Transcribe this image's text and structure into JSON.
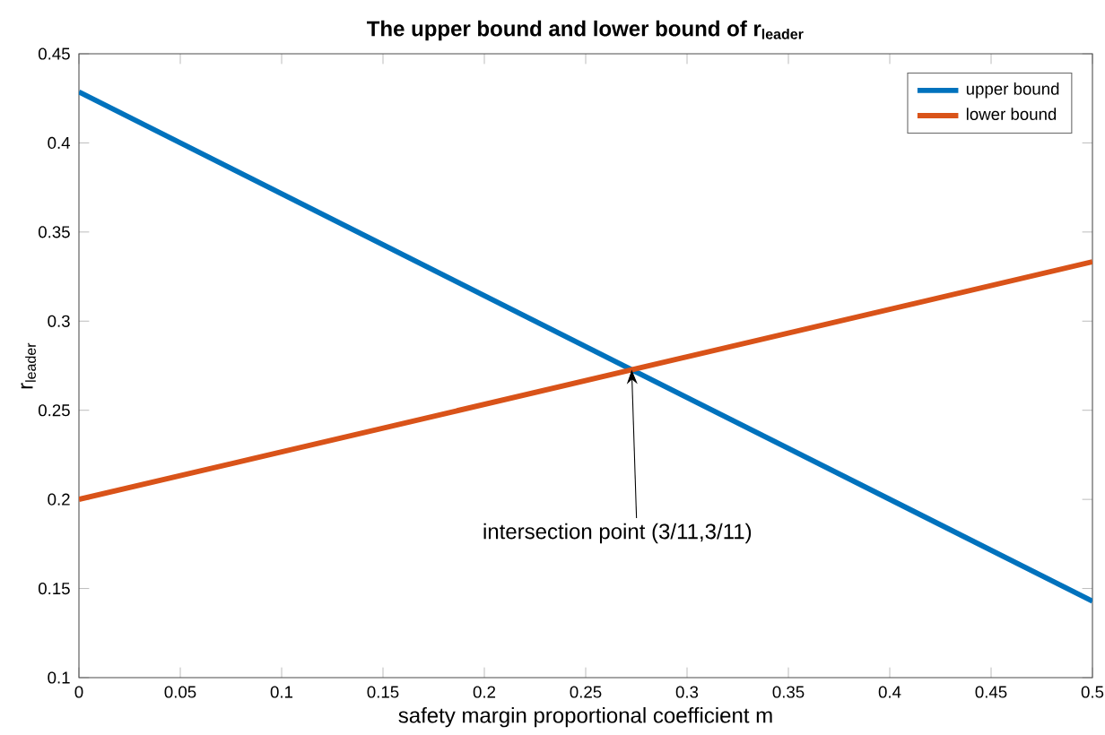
{
  "chart_data": {
    "type": "line",
    "title": "The upper bound and lower bound of r$_{leader}$",
    "xlabel": "safety margin proportional coefficient m",
    "ylabel": "r$_{leader}$",
    "x": [
      0,
      0.5
    ],
    "series": [
      {
        "name": "upper bound",
        "color": "#0072bd",
        "values": [
          0.4286,
          0.1429
        ]
      },
      {
        "name": "lower bound",
        "color": "#d95319",
        "values": [
          0.2,
          0.3333
        ]
      }
    ],
    "xlim": [
      0,
      0.5
    ],
    "ylim": [
      0.1,
      0.45
    ],
    "xticks": [
      0,
      0.05,
      0.1,
      0.15,
      0.2,
      0.25,
      0.3,
      0.35,
      0.4,
      0.45,
      0.5
    ],
    "yticks": [
      0.1,
      0.15,
      0.2,
      0.25,
      0.3,
      0.35,
      0.4,
      0.45
    ],
    "annotations": [
      {
        "text": "intersection point (3/11,3/11)",
        "x": 0.2727,
        "y": 0.2727
      }
    ],
    "legend": "top right",
    "grid": false,
    "marker": "none",
    "line_style": "solid"
  }
}
